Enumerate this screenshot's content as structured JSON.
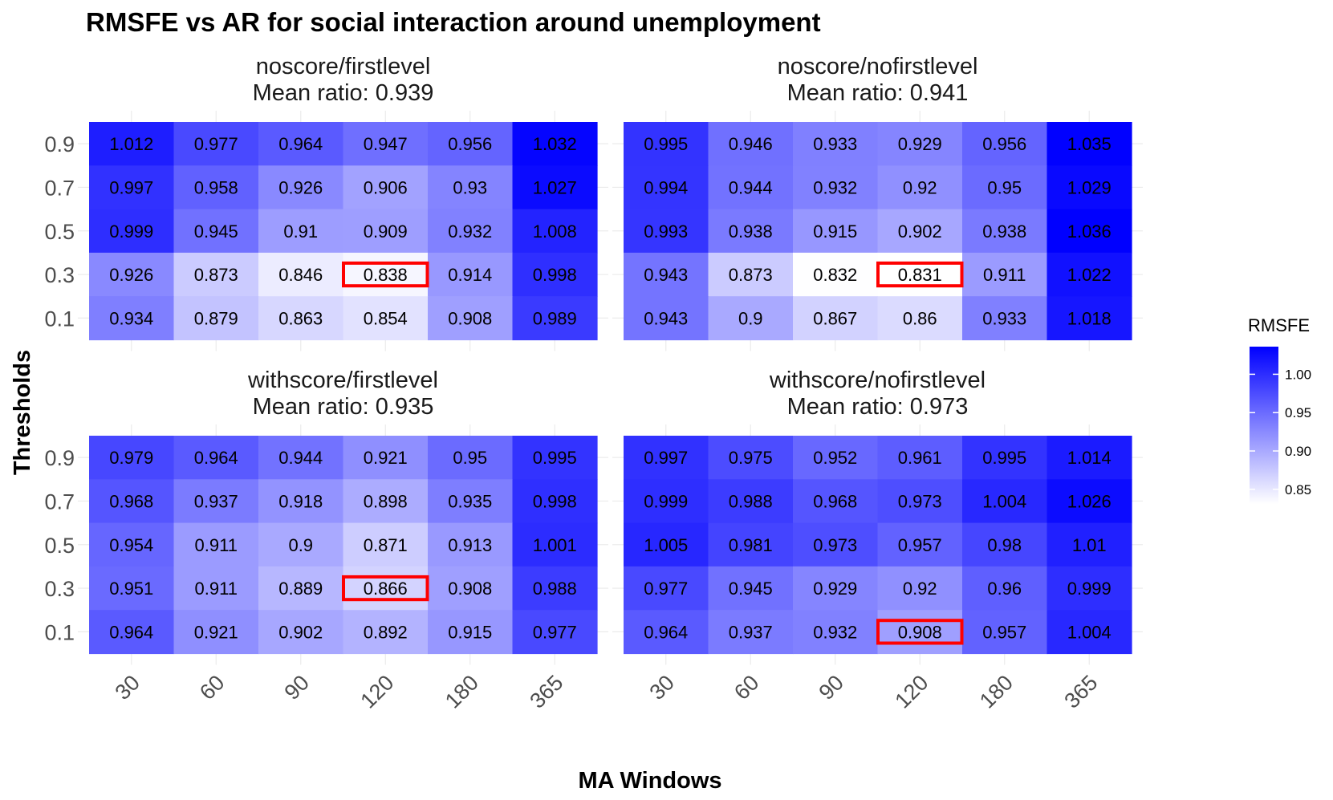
{
  "chart_data": {
    "type": "heatmap",
    "title": "RMSFE vs AR for social interaction around unemployment",
    "xlabel": "MA Windows",
    "ylabel": "Thresholds",
    "x_categories": [
      "30",
      "60",
      "90",
      "120",
      "180",
      "365"
    ],
    "y_categories": [
      "0.9",
      "0.7",
      "0.5",
      "0.3",
      "0.1"
    ],
    "legend": {
      "title": "RMSFE",
      "range": [
        0.831,
        1.036
      ],
      "ticks": [
        "0.85",
        "0.90",
        "0.95",
        "1.00"
      ],
      "tick_values": [
        0.85,
        0.9,
        0.95,
        1.0
      ],
      "low_color": "#ffffff",
      "high_color": "#0000ff"
    },
    "highlight_color": "#ff0000",
    "panels": [
      {
        "name": "noscore/firstlevel",
        "subtitle": "Mean ratio:  0.939",
        "values": [
          [
            "1.012",
            "0.977",
            "0.964",
            "0.947",
            "0.956",
            "1.032"
          ],
          [
            "0.997",
            "0.958",
            "0.926",
            "0.906",
            "0.93",
            "1.027"
          ],
          [
            "0.999",
            "0.945",
            "0.91",
            "0.909",
            "0.932",
            "1.008"
          ],
          [
            "0.926",
            "0.873",
            "0.846",
            "0.838",
            "0.914",
            "0.998"
          ],
          [
            "0.934",
            "0.879",
            "0.863",
            "0.854",
            "0.908",
            "0.989"
          ]
        ],
        "highlight": [
          [
            3,
            3
          ]
        ]
      },
      {
        "name": "noscore/nofirstlevel",
        "subtitle": "Mean ratio:  0.941",
        "values": [
          [
            "0.995",
            "0.946",
            "0.933",
            "0.929",
            "0.956",
            "1.035"
          ],
          [
            "0.994",
            "0.944",
            "0.932",
            "0.92",
            "0.95",
            "1.029"
          ],
          [
            "0.993",
            "0.938",
            "0.915",
            "0.902",
            "0.938",
            "1.036"
          ],
          [
            "0.943",
            "0.873",
            "0.832",
            "0.831",
            "0.911",
            "1.022"
          ],
          [
            "0.943",
            "0.9",
            "0.867",
            "0.86",
            "0.933",
            "1.018"
          ]
        ],
        "highlight": [
          [
            3,
            3
          ]
        ]
      },
      {
        "name": "withscore/firstlevel",
        "subtitle": "Mean ratio:  0.935",
        "values": [
          [
            "0.979",
            "0.964",
            "0.944",
            "0.921",
            "0.95",
            "0.995"
          ],
          [
            "0.968",
            "0.937",
            "0.918",
            "0.898",
            "0.935",
            "0.998"
          ],
          [
            "0.954",
            "0.911",
            "0.9",
            "0.871",
            "0.913",
            "1.001"
          ],
          [
            "0.951",
            "0.911",
            "0.889",
            "0.866",
            "0.908",
            "0.988"
          ],
          [
            "0.964",
            "0.921",
            "0.902",
            "0.892",
            "0.915",
            "0.977"
          ]
        ],
        "highlight": [
          [
            3,
            3
          ]
        ]
      },
      {
        "name": "withscore/nofirstlevel",
        "subtitle": "Mean ratio:  0.973",
        "values": [
          [
            "0.997",
            "0.975",
            "0.952",
            "0.961",
            "0.995",
            "1.014"
          ],
          [
            "0.999",
            "0.988",
            "0.968",
            "0.973",
            "1.004",
            "1.026"
          ],
          [
            "1.005",
            "0.981",
            "0.973",
            "0.957",
            "0.98",
            "1.01"
          ],
          [
            "0.977",
            "0.945",
            "0.929",
            "0.92",
            "0.96",
            "0.999"
          ],
          [
            "0.964",
            "0.937",
            "0.932",
            "0.908",
            "0.957",
            "1.004"
          ]
        ],
        "highlight": [
          [
            4,
            3
          ]
        ]
      }
    ]
  }
}
